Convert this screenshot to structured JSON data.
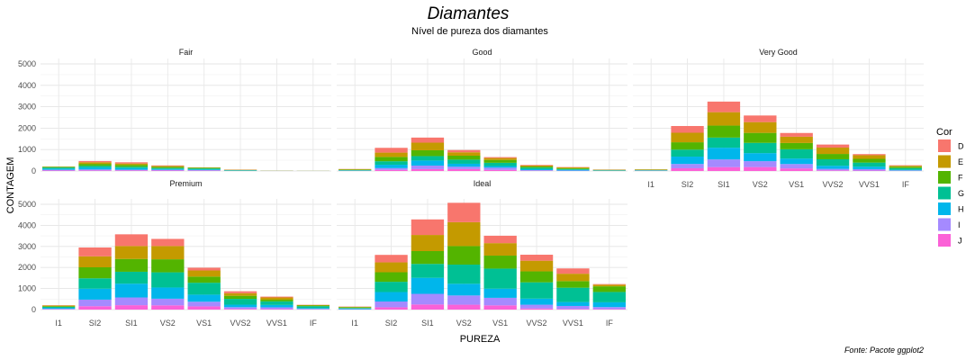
{
  "chart_data": {
    "type": "bar",
    "title": "Diamantes",
    "subtitle": "Nível de pureza dos diamantes",
    "caption": "Fonte: Pacote ggplot2",
    "xlabel": "PUREZA",
    "ylabel": "CONTAGEM",
    "ylim": [
      0,
      5000
    ],
    "yticks": [
      0,
      1000,
      2000,
      3000,
      4000,
      5000
    ],
    "grid": true,
    "stacked": true,
    "legend": {
      "title": "Cor",
      "position": "right"
    },
    "categories": [
      "I1",
      "SI2",
      "SI1",
      "VS2",
      "VS1",
      "VVS2",
      "VVS1",
      "IF"
    ],
    "colors": [
      "D",
      "E",
      "F",
      "G",
      "H",
      "I",
      "J"
    ],
    "stack_order": [
      "J",
      "I",
      "H",
      "G",
      "F",
      "E",
      "D"
    ],
    "color_hex": {
      "D": "#F8766D",
      "E": "#C49A00",
      "F": "#53B400",
      "G": "#00C094",
      "H": "#00B6EB",
      "I": "#A58AFF",
      "J": "#FB61D7"
    },
    "facets": [
      {
        "name": "Fair",
        "values": {
          "D": [
            4,
            56,
            58,
            25,
            5,
            9,
            3,
            3
          ],
          "E": [
            9,
            78,
            65,
            42,
            14,
            13,
            3,
            0
          ],
          "F": [
            35,
            89,
            83,
            53,
            33,
            10,
            5,
            4
          ],
          "G": [
            53,
            80,
            69,
            45,
            45,
            17,
            3,
            2
          ],
          "H": [
            52,
            91,
            75,
            41,
            32,
            11,
            1,
            0
          ],
          "I": [
            34,
            45,
            30,
            32,
            25,
            8,
            1,
            0
          ],
          "J": [
            23,
            27,
            28,
            23,
            16,
            1,
            1,
            0
          ]
        }
      },
      {
        "name": "Good",
        "values": {
          "D": [
            8,
            223,
            237,
            104,
            43,
            25,
            13,
            9
          ],
          "E": [
            23,
            202,
            355,
            160,
            89,
            52,
            43,
            9
          ],
          "F": [
            19,
            201,
            273,
            184,
            132,
            50,
            35,
            15
          ],
          "G": [
            19,
            163,
            207,
            192,
            152,
            75,
            41,
            22
          ],
          "H": [
            14,
            158,
            235,
            138,
            77,
            45,
            31,
            4
          ],
          "I": [
            9,
            81,
            165,
            110,
            103,
            26,
            22,
            6
          ],
          "J": [
            4,
            53,
            88,
            90,
            52,
            13,
            1,
            6
          ]
        }
      },
      {
        "name": "Very Good",
        "values": {
          "D": [
            5,
            314,
            494,
            309,
            175,
            141,
            52,
            23
          ],
          "E": [
            22,
            445,
            626,
            503,
            293,
            298,
            170,
            43
          ],
          "F": [
            13,
            343,
            559,
            466,
            293,
            249,
            174,
            67
          ],
          "G": [
            16,
            327,
            474,
            479,
            432,
            302,
            190,
            79
          ],
          "H": [
            12,
            343,
            547,
            376,
            257,
            145,
            115,
            29
          ],
          "I": [
            8,
            200,
            358,
            274,
            205,
            71,
            69,
            19
          ],
          "J": [
            8,
            128,
            182,
            184,
            120,
            29,
            19,
            8
          ]
        }
      },
      {
        "name": "Premium",
        "values": {
          "D": [
            12,
            421,
            556,
            339,
            131,
            94,
            40,
            10
          ],
          "E": [
            30,
            519,
            614,
            629,
            292,
            121,
            105,
            27
          ],
          "F": [
            34,
            523,
            608,
            619,
            290,
            146,
            80,
            31
          ],
          "G": [
            46,
            492,
            566,
            721,
            566,
            275,
            171,
            87
          ],
          "H": [
            46,
            521,
            655,
            532,
            336,
            118,
            112,
            40
          ],
          "I": [
            24,
            312,
            367,
            315,
            221,
            82,
            84,
            23
          ],
          "J": [
            13,
            161,
            209,
            202,
            153,
            34,
            24,
            12
          ]
        }
      },
      {
        "name": "Ideal",
        "values": {
          "D": [
            13,
            356,
            738,
            920,
            351,
            284,
            252,
            28
          ],
          "E": [
            18,
            469,
            766,
            1136,
            593,
            507,
            351,
            79
          ],
          "F": [
            42,
            453,
            608,
            879,
            616,
            520,
            312,
            268
          ],
          "G": [
            16,
            486,
            660,
            910,
            953,
            774,
            682,
            491
          ],
          "H": [
            38,
            450,
            763,
            556,
            435,
            289,
            186,
            226
          ],
          "I": [
            17,
            274,
            504,
            438,
            358,
            178,
            143,
            95
          ],
          "J": [
            2,
            110,
            243,
            232,
            201,
            54,
            29,
            25
          ]
        }
      }
    ]
  }
}
